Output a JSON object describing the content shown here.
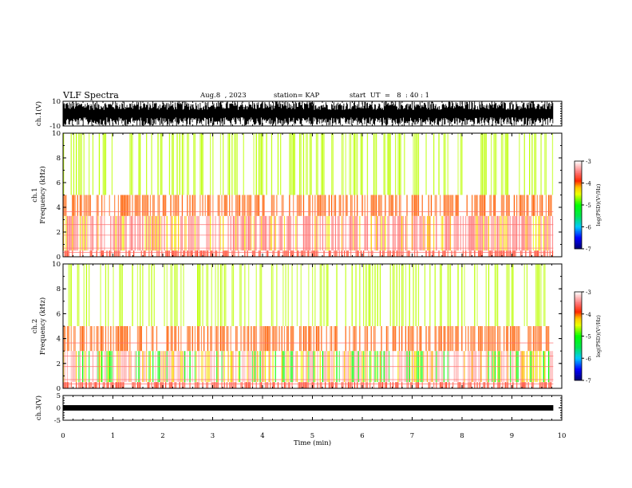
{
  "header": {
    "title": "VLF Spectra",
    "date": "Aug.8  , 2023",
    "station": "station= KAP",
    "start": "start  UT  =   8  : 40 : 1"
  },
  "chart_data": [
    {
      "type": "line",
      "panel": "ch1-waveform",
      "ylabel": "ch.1(V)",
      "ylim": [
        -10,
        10
      ],
      "yticks": [
        "10",
        "-10"
      ],
      "xlim": [
        0,
        10
      ],
      "data_extent_min": [
        0,
        9.83
      ],
      "series": [
        {
          "color": "#000000",
          "envelope_min": -10,
          "envelope_max": 10
        }
      ]
    },
    {
      "type": "heatmap",
      "panel": "ch1-spectrogram",
      "ylabel": "ch.1\nFrequency  (kHz)",
      "ylim": [
        0,
        10
      ],
      "yticks": [
        "0",
        "2",
        "4",
        "6",
        "8",
        "10"
      ],
      "xlim": [
        0,
        10
      ],
      "data_extent_min": [
        0,
        9.83
      ],
      "colorbar": {
        "label": "log(PSD)(V²/Hz)",
        "range": [
          -7,
          -3
        ],
        "ticks": [
          "-3",
          "-4",
          "-5",
          "-6",
          "-7"
        ]
      },
      "frequency_profile_kHz": [
        {
          "f": [
            0.0,
            0.5
          ],
          "log_psd": -3.8
        },
        {
          "f": [
            0.5,
            3.3
          ],
          "log_psd": -3.5
        },
        {
          "f": [
            3.3,
            5.0
          ],
          "log_psd": -4.0
        },
        {
          "f": [
            5.0,
            10.0
          ],
          "log_psd": -4.6
        }
      ]
    },
    {
      "type": "heatmap",
      "panel": "ch2-spectrogram",
      "ylabel": "ch.2\nFrequency  (kHz)",
      "ylim": [
        0,
        10
      ],
      "yticks": [
        "0",
        "2",
        "4",
        "6",
        "8",
        "10"
      ],
      "xlim": [
        0,
        10
      ],
      "data_extent_min": [
        0,
        9.83
      ],
      "colorbar": {
        "label": "log(PSD)(V²/Hz)",
        "range": [
          -7,
          -3
        ],
        "ticks": [
          "-3",
          "-4",
          "-5",
          "-6",
          "-7"
        ]
      },
      "frequency_profile_kHz": [
        {
          "f": [
            0.0,
            0.5
          ],
          "log_psd": -3.8
        },
        {
          "f": [
            0.5,
            3.0
          ],
          "log_psd": -3.3
        },
        {
          "f": [
            3.0,
            5.0
          ],
          "log_psd": -4.0
        },
        {
          "f": [
            5.0,
            10.0
          ],
          "log_psd": -4.6
        }
      ]
    },
    {
      "type": "line",
      "panel": "ch3-waveform",
      "ylabel": "ch.3(V)",
      "ylim": [
        -5,
        5
      ],
      "yticks": [
        "5",
        "0",
        "-5"
      ],
      "xlim": [
        0,
        10
      ],
      "data_extent_min": [
        0,
        9.83
      ],
      "series": [
        {
          "color": "#000000",
          "envelope_min": -0.5,
          "envelope_max": 0.5
        }
      ]
    }
  ],
  "xaxis": {
    "label": "Time  (min)",
    "ticks": [
      "0",
      "1",
      "2",
      "3",
      "4",
      "5",
      "6",
      "7",
      "8",
      "9",
      "10"
    ],
    "range": [
      0,
      10
    ]
  }
}
